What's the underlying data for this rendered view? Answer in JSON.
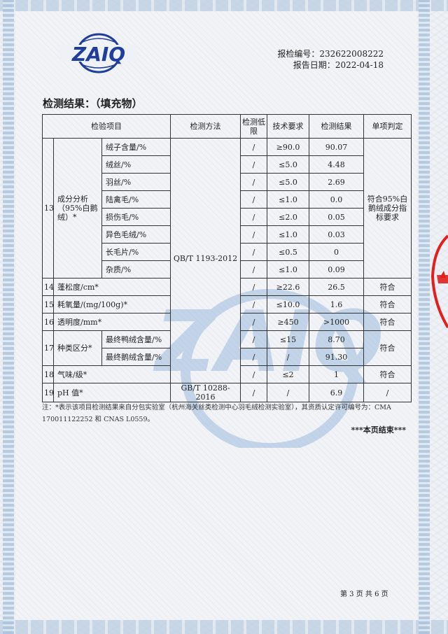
{
  "header": {
    "logo_text": "ZAIQ",
    "report_no_label": "报检编号：",
    "report_no": "232622008222",
    "date_label": "报告日期：",
    "date": "2022-04-18"
  },
  "title": "检测结果：（填充物）",
  "table": {
    "headers": {
      "item": "检验项目",
      "method": "检测方法",
      "limit": "检测低限",
      "req": "技术要求",
      "result": "检测结果",
      "judge": "单项判定"
    },
    "group13": {
      "no": "13",
      "name": "成分分析（95%白鹅绒）*",
      "method": "QB/T 1193-2012",
      "judge": "符合95%白鹅绒成分指标要求",
      "rows": [
        {
          "sub": "绒子含量/%",
          "limit": "/",
          "req": "≥90.0",
          "result": "90.07"
        },
        {
          "sub": "绒丝/%",
          "limit": "/",
          "req": "≤5.0",
          "result": "4.48"
        },
        {
          "sub": "羽丝/%",
          "limit": "/",
          "req": "≤5.0",
          "result": "2.69"
        },
        {
          "sub": "陆禽毛/%",
          "limit": "/",
          "req": "≤1.0",
          "result": "0.0"
        },
        {
          "sub": "损伤毛/%",
          "limit": "/",
          "req": "≤2.0",
          "result": "0.05"
        },
        {
          "sub": "异色毛绒/%",
          "limit": "/",
          "req": "≤1.0",
          "result": "0.03"
        },
        {
          "sub": "长毛片/%",
          "limit": "/",
          "req": "≤0.5",
          "result": "0"
        },
        {
          "sub": "杂质/%",
          "limit": "/",
          "req": "≤1.0",
          "result": "0.09"
        }
      ]
    },
    "r14": {
      "no": "14",
      "name": "蓬松度/cm*",
      "limit": "/",
      "req": "≥22.6",
      "result": "26.5",
      "judge": "符合"
    },
    "r15": {
      "no": "15",
      "name": "耗氧量/(mg/100g)*",
      "limit": "/",
      "req": "≤10.0",
      "result": "1.6",
      "judge": "符合"
    },
    "r16": {
      "no": "16",
      "name": "透明度/mm*",
      "limit": "/",
      "req": "≥450",
      "result": ">1000",
      "judge": "符合"
    },
    "r17": {
      "no": "17",
      "name": "种类区分*",
      "judge": "符合",
      "rows": [
        {
          "sub": "最终鸭绒含量/%",
          "limit": "/",
          "req": "≤15",
          "result": "8.70"
        },
        {
          "sub": "最终鹅绒含量/%",
          "limit": "/",
          "req": "/",
          "result": "91.30"
        }
      ]
    },
    "r18": {
      "no": "18",
      "name": "气味/级*",
      "limit": "/",
      "req": "≤2",
      "result": "1",
      "judge": "符合"
    },
    "r19": {
      "no": "19",
      "name": "pH 值*",
      "method": "GB/T 10288-2016",
      "limit": "/",
      "req": "/",
      "result": "6.9",
      "judge": "/"
    }
  },
  "note": "注：*表示该项目检测结果来自分包实验室（杭州海关丝类检测中心羽毛绒检测实验室），其资质认定许可编号为：CMA 170011122252 和 CNAS L0559。",
  "end": "***本页结束***",
  "page": "第 3 页  共 6 页",
  "colors": {
    "logo_blue": "#1f3d9a",
    "stamp_red": "#e0201c"
  }
}
